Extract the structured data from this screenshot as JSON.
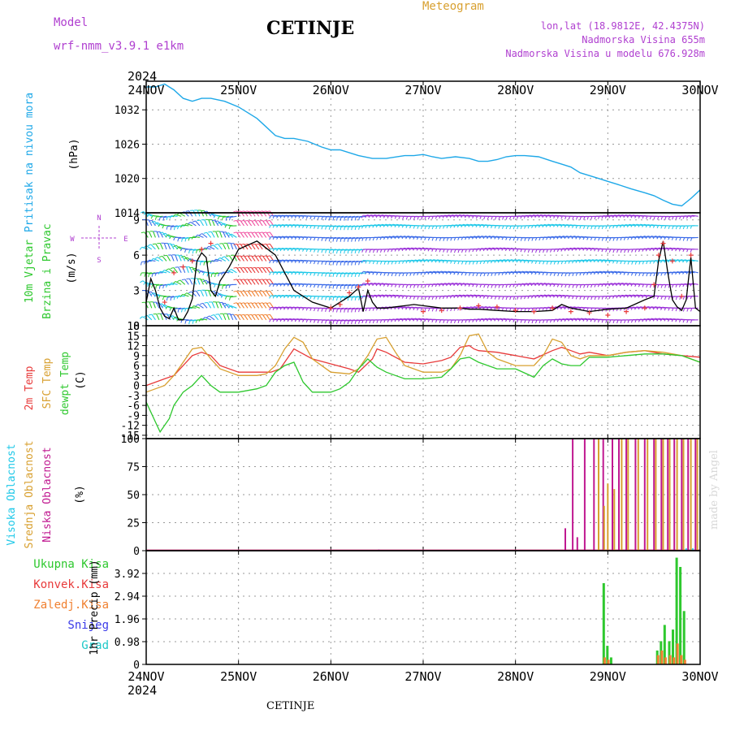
{
  "header": {
    "model_label": "Model",
    "model_name": "wrf-nmm_v3.9.1  e1km",
    "station": "CETINJE",
    "meteogram_label": "Meteogram",
    "lonlat": "lon,lat (18.9812E, 42.4375N)",
    "elevation": "Nadmorska Visina 655m",
    "model_elevation": "Nadmorska Visina u modelu 676.928m"
  },
  "footer": {
    "station": "CETINJE"
  },
  "watermark": "made by Angel",
  "colors": {
    "pressure": "#1ea8e8",
    "wind_speed": "#000000",
    "gust": "#e83a3a",
    "t2m": "#e83a3a",
    "sfc_temp": "#d8a030",
    "dewpoint": "#2ec82e",
    "high_cloud": "#1ec8e8",
    "mid_cloud": "#d8a030",
    "low_cloud": "#c01890",
    "total_precip": "#2ec82e",
    "conv_precip": "#e83a3a",
    "grid_precip": "#f08030",
    "snow": "#3a3ae8",
    "hail": "#1ec8c8",
    "panel_labels_purple": "#b040d0"
  },
  "chart_data": [
    {
      "type": "line",
      "panel": "pressure",
      "ylabel_lines": [
        "Pritisak na nivou mora"
      ],
      "unit": "(hPa)",
      "ylim": [
        1014,
        1037
      ],
      "yticks": [
        1014,
        1020,
        1026,
        1032
      ],
      "x_year": "2024",
      "xticks": [
        "24NOV",
        "25NOV",
        "26NOV",
        "27NOV",
        "28NOV",
        "29NOV",
        "30NOV"
      ],
      "x_days": [
        0,
        6
      ],
      "series": [
        {
          "x": [
            0,
            0.1,
            0.2,
            0.3,
            0.4,
            0.5,
            0.6,
            0.7,
            0.85,
            1.0,
            1.1,
            1.2,
            1.3,
            1.4,
            1.5,
            1.6,
            1.75,
            1.9,
            2.0,
            2.1,
            2.3,
            2.45,
            2.6,
            2.8,
            2.9,
            3.0,
            3.1,
            3.2,
            3.35,
            3.5,
            3.6,
            3.7,
            3.8,
            3.9,
            4.0,
            4.1,
            4.25,
            4.4,
            4.5,
            4.6,
            4.7,
            4.8,
            4.9,
            5.0,
            5.1,
            5.25,
            5.4,
            5.5,
            5.6,
            5.7,
            5.8,
            5.9,
            6.0
          ],
          "values": [
            1036,
            1036,
            1036.5,
            1035.5,
            1034,
            1033.5,
            1034,
            1034,
            1033.5,
            1032.5,
            1031.5,
            1030.5,
            1029,
            1027.5,
            1027,
            1027,
            1026.5,
            1025.5,
            1025,
            1025,
            1024,
            1023.5,
            1023.5,
            1024,
            1024,
            1024.2,
            1023.8,
            1023.5,
            1023.8,
            1023.5,
            1023,
            1023,
            1023.3,
            1023.8,
            1024,
            1024,
            1023.8,
            1023,
            1022.5,
            1022,
            1021,
            1020.5,
            1020,
            1019.5,
            1019,
            1018.2,
            1017.5,
            1017,
            1016.2,
            1015.5,
            1015.2,
            1016.5,
            1018
          ]
        }
      ]
    },
    {
      "type": "line",
      "panel": "wind",
      "ylabel_lines": [
        "10m Vjetar",
        "Brzina i Pravac"
      ],
      "unit": "(m/s)",
      "compass": [
        "N",
        "W",
        "E",
        "S"
      ],
      "ylim": [
        0,
        9.6
      ],
      "yticks": [
        0,
        3,
        6,
        9
      ],
      "series": [
        {
          "name": "speed",
          "x": [
            0,
            0.05,
            0.1,
            0.15,
            0.2,
            0.25,
            0.3,
            0.35,
            0.4,
            0.45,
            0.5,
            0.55,
            0.6,
            0.65,
            0.7,
            0.75,
            0.8,
            0.9,
            1.0,
            1.2,
            1.4,
            1.6,
            1.8,
            2.0,
            2.2,
            2.3,
            2.35,
            2.4,
            2.45,
            2.5,
            2.6,
            2.7,
            2.8,
            2.9,
            3.0,
            3.1,
            3.2,
            3.3,
            3.4,
            3.5,
            3.6,
            3.8,
            4.0,
            4.2,
            4.4,
            4.5,
            4.6,
            4.8,
            5.0,
            5.2,
            5.4,
            5.5,
            5.55,
            5.6,
            5.65,
            5.7,
            5.75,
            5.8,
            5.85,
            5.9,
            5.95,
            6.0
          ],
          "values": [
            2,
            4,
            3,
            1.5,
            0.8,
            0.6,
            1.5,
            0.5,
            0.5,
            1.2,
            2.3,
            5.5,
            6.2,
            5.8,
            3,
            2.5,
            3.8,
            5,
            6.5,
            7.2,
            6,
            3,
            2,
            1.5,
            2.5,
            3.2,
            1.2,
            3,
            2,
            1.5,
            1.5,
            1.6,
            1.7,
            1.8,
            1.7,
            1.6,
            1.5,
            1.5,
            1.5,
            1.4,
            1.4,
            1.3,
            1.2,
            1.2,
            1.3,
            1.8,
            1.5,
            1.2,
            1.4,
            1.5,
            2.2,
            2.5,
            5.5,
            7.2,
            4.5,
            2.2,
            1.6,
            1.3,
            2.2,
            5.8,
            1.5,
            1.2
          ]
        },
        {
          "name": "gust",
          "x": [
            0.2,
            0.3,
            0.4,
            0.5,
            0.6,
            0.7,
            2.0,
            2.1,
            2.2,
            2.3,
            2.4,
            3.0,
            3.2,
            3.4,
            3.6,
            3.8,
            4.0,
            4.2,
            4.4,
            4.6,
            4.8,
            5.0,
            5.2,
            5.4,
            5.5,
            5.55,
            5.6,
            5.7,
            5.8,
            5.9
          ],
          "values": [
            2,
            4.5,
            5,
            5.5,
            6.5,
            7,
            1.5,
            1.8,
            2.8,
            3.3,
            3.8,
            1.2,
            1.3,
            1.5,
            1.7,
            1.6,
            1.3,
            1.2,
            1.5,
            1.2,
            1.1,
            0.9,
            1.2,
            1.5,
            3.5,
            6,
            7,
            5.5,
            2.5,
            6
          ]
        }
      ]
    },
    {
      "type": "line",
      "panel": "temperature",
      "ylabel_lines": [
        "2m Temp",
        "SFC Temp",
        "dewpt Temp"
      ],
      "unit": "(C)",
      "ylim": [
        -16,
        18
      ],
      "yticks": [
        -15,
        -12,
        -9,
        -6,
        -3,
        0,
        3,
        6,
        9,
        12,
        15,
        18
      ],
      "series": [
        {
          "name": "2m Temp",
          "x": [
            0,
            0.1,
            0.2,
            0.3,
            0.4,
            0.5,
            0.6,
            0.7,
            0.8,
            1.0,
            1.2,
            1.35,
            1.45,
            1.5,
            1.6,
            1.8,
            2.0,
            2.2,
            2.3,
            2.45,
            2.5,
            2.6,
            2.8,
            3.0,
            3.2,
            3.3,
            3.4,
            3.5,
            3.55,
            3.6,
            3.8,
            4.0,
            4.2,
            4.4,
            4.5,
            4.6,
            4.7,
            4.8,
            5.0,
            5.2,
            5.4,
            5.6,
            5.8,
            6.0
          ],
          "values": [
            0,
            1,
            2,
            3,
            6,
            9,
            10,
            9,
            6,
            4,
            4,
            4,
            5,
            7,
            11,
            8,
            6.5,
            5,
            4,
            8,
            11,
            10,
            7,
            6.5,
            7.5,
            8.5,
            11.5,
            12,
            11,
            10.5,
            10,
            9,
            8,
            10.5,
            11.5,
            10.5,
            9.5,
            10,
            9,
            10,
            10.5,
            9.5,
            9,
            8.5
          ]
        },
        {
          "name": "SFC Temp",
          "x": [
            0,
            0.1,
            0.2,
            0.3,
            0.4,
            0.5,
            0.6,
            0.7,
            0.8,
            1.0,
            1.2,
            1.3,
            1.4,
            1.5,
            1.6,
            1.7,
            1.8,
            2.0,
            2.2,
            2.3,
            2.4,
            2.5,
            2.6,
            2.7,
            2.8,
            3.0,
            3.2,
            3.3,
            3.4,
            3.5,
            3.6,
            3.7,
            3.8,
            4.0,
            4.2,
            4.3,
            4.4,
            4.5,
            4.6,
            4.7,
            4.8,
            5.0,
            5.2,
            5.4,
            5.6,
            5.8,
            6.0
          ],
          "values": [
            -2,
            -1,
            0,
            3,
            7,
            11,
            11.5,
            8,
            5,
            3,
            3,
            3.5,
            6,
            11,
            14.5,
            13,
            8,
            4,
            3.5,
            5,
            9,
            14,
            14.5,
            10,
            6,
            4,
            4,
            5,
            9,
            15,
            15.5,
            10,
            8,
            6,
            6,
            9,
            14,
            13,
            9,
            8,
            9,
            9,
            10,
            10.5,
            10,
            9,
            7
          ]
        },
        {
          "name": "dewpt Temp",
          "x": [
            0,
            0.05,
            0.1,
            0.15,
            0.2,
            0.25,
            0.3,
            0.4,
            0.5,
            0.6,
            0.7,
            0.8,
            1.0,
            1.2,
            1.3,
            1.4,
            1.5,
            1.6,
            1.7,
            1.8,
            2.0,
            2.1,
            2.2,
            2.3,
            2.4,
            2.5,
            2.6,
            2.7,
            2.8,
            3.0,
            3.2,
            3.3,
            3.4,
            3.5,
            3.6,
            3.8,
            4.0,
            4.2,
            4.3,
            4.4,
            4.5,
            4.6,
            4.7,
            4.8,
            5.0,
            5.2,
            5.4,
            5.6,
            5.8,
            6.0
          ],
          "values": [
            -5,
            -8,
            -11,
            -14,
            -12,
            -10,
            -6,
            -2,
            0,
            3,
            0,
            -2,
            -2,
            -1,
            0,
            4,
            6,
            7,
            1,
            -2,
            -2,
            -1,
            1,
            5,
            8,
            5.5,
            4,
            3,
            2,
            2,
            2.5,
            5,
            8,
            8.5,
            7,
            5,
            5,
            2.5,
            6,
            8,
            6.5,
            6,
            6,
            8.5,
            8.5,
            9,
            9.5,
            9.5,
            9,
            7
          ]
        }
      ]
    },
    {
      "type": "bar",
      "panel": "cloud",
      "ylabel_lines": [
        "Visoka Oblacnost",
        "Srednja Oblacnost",
        "Niska  Oblacnost"
      ],
      "unit": "(%)",
      "ylim": [
        0,
        100
      ],
      "yticks": [
        0,
        25,
        50,
        75,
        100
      ],
      "series": [
        {
          "name": "Niska  Oblacnost",
          "x": [
            2.52,
            4.54,
            4.62,
            4.67,
            4.75,
            4.85,
            4.95,
            5.05,
            5.12,
            5.2,
            5.3,
            5.4,
            5.5,
            5.58,
            5.65,
            5.72,
            5.8,
            5.87,
            5.95
          ],
          "values": [
            1,
            20,
            100,
            12,
            100,
            100,
            100,
            100,
            100,
            100,
            100,
            100,
            100,
            100,
            100,
            100,
            100,
            100,
            100
          ]
        },
        {
          "name": "Srednja Oblacnost",
          "x": [
            4.9,
            4.96,
            5.0,
            5.07,
            5.15,
            5.22,
            5.33,
            5.43,
            5.52,
            5.6,
            5.67,
            5.75,
            5.82,
            5.9,
            5.97
          ],
          "values": [
            100,
            40,
            60,
            55,
            100,
            100,
            100,
            100,
            100,
            100,
            100,
            100,
            100,
            100,
            100
          ]
        },
        {
          "name": "Visoka Oblacnost",
          "x": [
            5.85,
            5.92
          ],
          "values": [
            2,
            2
          ]
        }
      ]
    },
    {
      "type": "bar",
      "panel": "precipitation",
      "legend": [
        "Ukupna Kisa",
        "Konvek.Kisa",
        "Zaledj.Kisa",
        "Snijeg",
        "Grad"
      ],
      "ylabel": "1hr Precip (mm)",
      "ylim": [
        0,
        4.9
      ],
      "yticks": [
        0,
        0.98,
        1.96,
        2.94,
        3.92
      ],
      "series": [
        {
          "name": "Ukupna Kisa",
          "x": [
            4.96,
            5.0,
            5.04,
            5.54,
            5.58,
            5.62,
            5.67,
            5.71,
            5.75,
            5.79,
            5.83
          ],
          "values": [
            3.5,
            0.8,
            0.3,
            0.6,
            1.0,
            1.7,
            1.0,
            1.5,
            4.6,
            4.2,
            2.3
          ]
        },
        {
          "name": "Zaledj.Kisa",
          "x": [
            4.97,
            5.01,
            5.55,
            5.59,
            5.63,
            5.68,
            5.72,
            5.76,
            5.8,
            5.84
          ],
          "values": [
            0.3,
            0.2,
            0.4,
            0.6,
            0.3,
            0.4,
            0.3,
            0.9,
            0.4,
            0.2
          ]
        }
      ]
    }
  ]
}
